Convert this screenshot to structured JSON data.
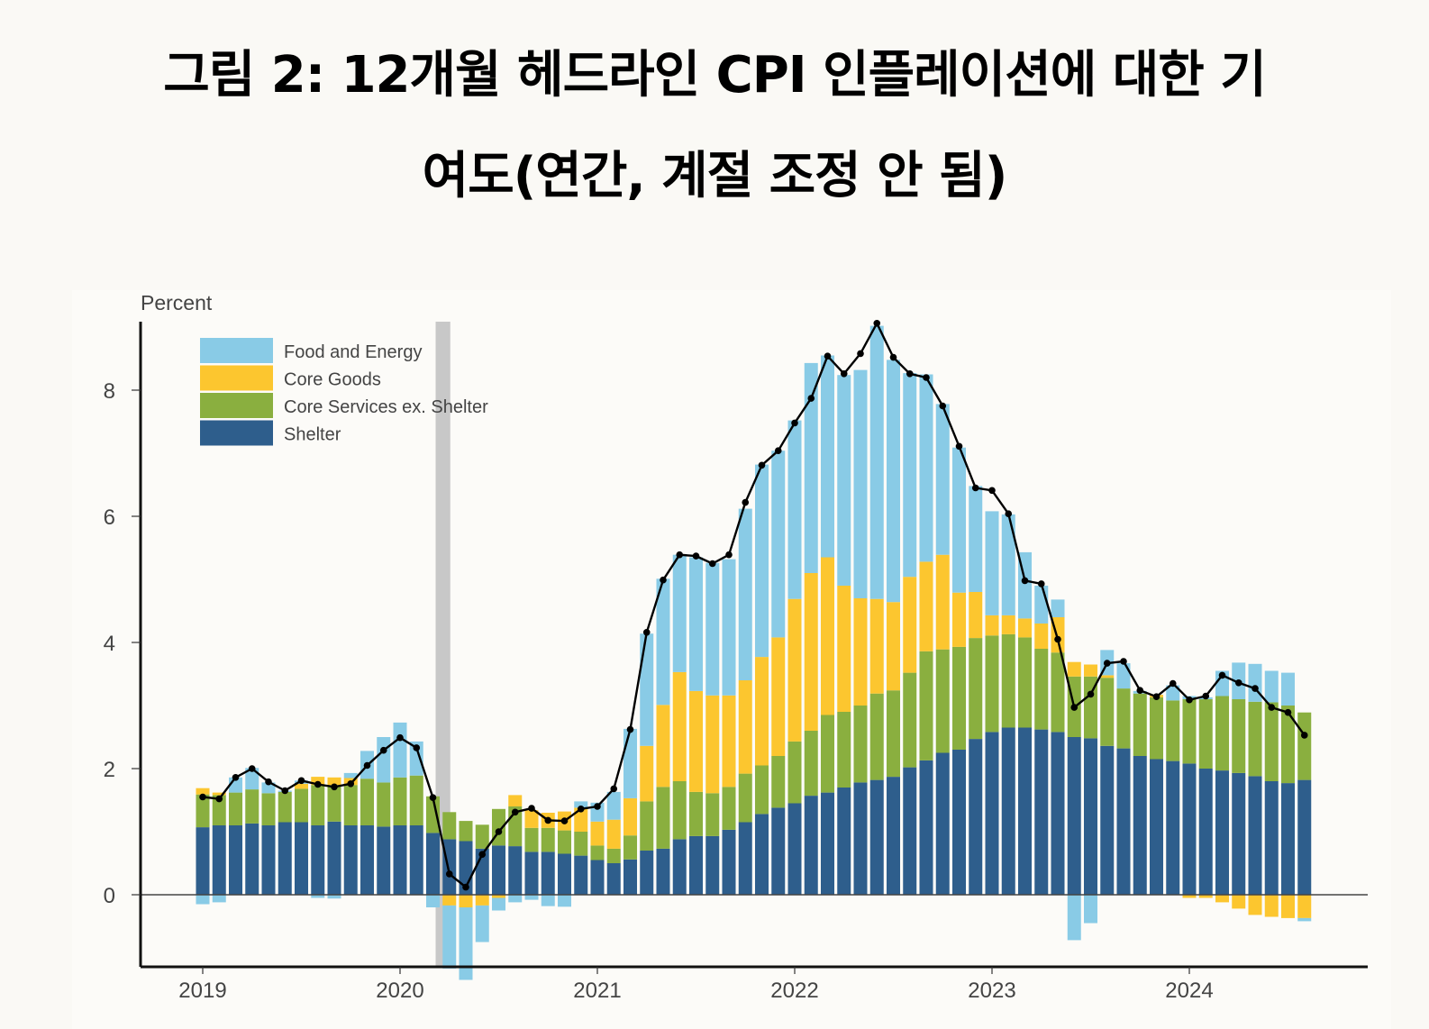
{
  "title": {
    "line1": "그림 2: 12개월 헤드라인 CPI 인플레이션에 대한 기",
    "line2": "여도(연간, 계절 조정 안 됨)"
  },
  "chart_data": {
    "type": "bar",
    "stacked": true,
    "title": "그림 2: 12개월 헤드라인 CPI 인플레이션에 대한 기여도(연간, 계절 조정 안 됨)",
    "ylabel": "Percent",
    "xlabel": "",
    "ylim": [
      -1.15,
      9.1
    ],
    "yticks": [
      0,
      2,
      4,
      6,
      8
    ],
    "xticks": [
      "2019",
      "2020",
      "2021",
      "2022",
      "2023",
      "2024"
    ],
    "grid": false,
    "legend_position": "top-left",
    "recession_shading": {
      "start": "2020-03",
      "end": "2020-04"
    },
    "x": [
      "2019-01",
      "2019-02",
      "2019-03",
      "2019-04",
      "2019-05",
      "2019-06",
      "2019-07",
      "2019-08",
      "2019-09",
      "2019-10",
      "2019-11",
      "2019-12",
      "2020-01",
      "2020-02",
      "2020-03",
      "2020-04",
      "2020-05",
      "2020-06",
      "2020-07",
      "2020-08",
      "2020-09",
      "2020-10",
      "2020-11",
      "2020-12",
      "2021-01",
      "2021-02",
      "2021-03",
      "2021-04",
      "2021-05",
      "2021-06",
      "2021-07",
      "2021-08",
      "2021-09",
      "2021-10",
      "2021-11",
      "2021-12",
      "2022-01",
      "2022-02",
      "2022-03",
      "2022-04",
      "2022-05",
      "2022-06",
      "2022-07",
      "2022-08",
      "2022-09",
      "2022-10",
      "2022-11",
      "2022-12",
      "2023-01",
      "2023-02",
      "2023-03",
      "2023-04",
      "2023-05",
      "2023-06",
      "2023-07",
      "2023-08",
      "2023-09",
      "2023-10",
      "2023-11",
      "2023-12",
      "2024-01",
      "2024-02",
      "2024-03",
      "2024-04",
      "2024-05",
      "2024-06",
      "2024-07",
      "2024-08"
    ],
    "series": [
      {
        "name": "Shelter",
        "color": "#2e5e8c",
        "values": [
          1.07,
          1.1,
          1.1,
          1.13,
          1.1,
          1.15,
          1.15,
          1.1,
          1.16,
          1.1,
          1.1,
          1.08,
          1.1,
          1.1,
          0.98,
          0.88,
          0.85,
          0.73,
          0.78,
          0.77,
          0.68,
          0.68,
          0.65,
          0.62,
          0.55,
          0.5,
          0.56,
          0.7,
          0.73,
          0.88,
          0.93,
          0.93,
          1.03,
          1.15,
          1.28,
          1.38,
          1.45,
          1.57,
          1.62,
          1.7,
          1.78,
          1.82,
          1.87,
          2.02,
          2.13,
          2.25,
          2.3,
          2.47,
          2.58,
          2.65,
          2.65,
          2.62,
          2.58,
          2.5,
          2.48,
          2.36,
          2.32,
          2.2,
          2.15,
          2.12,
          2.08,
          2.0,
          1.97,
          1.93,
          1.88,
          1.8,
          1.77,
          1.82
        ]
      },
      {
        "name": "Core Services ex. Shelter",
        "color": "#8aaf3f",
        "values": [
          0.52,
          0.48,
          0.52,
          0.54,
          0.51,
          0.48,
          0.53,
          0.64,
          0.58,
          0.64,
          0.74,
          0.7,
          0.76,
          0.79,
          0.58,
          0.43,
          0.32,
          0.38,
          0.58,
          0.63,
          0.38,
          0.38,
          0.37,
          0.38,
          0.23,
          0.23,
          0.38,
          0.78,
          0.98,
          0.92,
          0.7,
          0.68,
          0.68,
          0.77,
          0.77,
          0.82,
          0.98,
          1.03,
          1.23,
          1.2,
          1.22,
          1.37,
          1.37,
          1.5,
          1.73,
          1.64,
          1.63,
          1.6,
          1.53,
          1.48,
          1.43,
          1.28,
          1.26,
          0.96,
          0.98,
          1.08,
          0.95,
          0.99,
          0.98,
          0.96,
          1.02,
          1.1,
          1.18,
          1.17,
          1.18,
          1.25,
          1.23,
          1.07
        ]
      },
      {
        "name": "Core Goods",
        "color": "#fcc62f",
        "values": [
          0.1,
          0.04,
          0.0,
          0.0,
          0.0,
          0.0,
          0.08,
          0.13,
          0.12,
          0.11,
          0.0,
          0.0,
          0.0,
          0.0,
          0.0,
          -0.17,
          -0.2,
          -0.17,
          -0.05,
          0.18,
          0.28,
          0.24,
          0.3,
          0.38,
          0.38,
          0.46,
          0.59,
          0.88,
          1.3,
          1.73,
          1.6,
          1.55,
          1.45,
          1.48,
          1.72,
          1.88,
          2.26,
          2.5,
          2.5,
          2.0,
          1.7,
          1.5,
          1.4,
          1.52,
          1.42,
          1.5,
          0.86,
          0.73,
          0.32,
          0.3,
          0.3,
          0.4,
          0.56,
          0.23,
          0.19,
          0.04,
          0.0,
          0.0,
          0.04,
          0.0,
          -0.05,
          -0.05,
          -0.12,
          -0.22,
          -0.32,
          -0.35,
          -0.37,
          -0.37
        ]
      },
      {
        "name": "Food and Energy",
        "color": "#89cbe6",
        "values": [
          -0.15,
          -0.12,
          0.24,
          0.34,
          0.17,
          0.02,
          0.05,
          -0.05,
          -0.06,
          0.08,
          0.44,
          0.72,
          0.87,
          0.54,
          -0.2,
          -1.0,
          -1.15,
          -0.58,
          -0.2,
          -0.12,
          -0.08,
          -0.18,
          -0.19,
          0.1,
          0.3,
          0.44,
          1.1,
          1.78,
          2.0,
          1.86,
          2.12,
          2.1,
          2.16,
          2.72,
          3.05,
          2.96,
          2.83,
          3.33,
          3.2,
          3.34,
          3.62,
          4.33,
          3.84,
          3.23,
          2.97,
          2.39,
          2.3,
          1.68,
          1.65,
          1.6,
          1.05,
          0.6,
          0.28,
          -0.72,
          -0.45,
          0.4,
          0.4,
          0.04,
          0.0,
          0.24,
          0.05,
          0.03,
          0.4,
          0.58,
          0.6,
          0.5,
          0.52,
          -0.05
        ]
      }
    ],
    "headline": {
      "name": "Headline CPI",
      "color": "#000000",
      "values": [
        1.55,
        1.52,
        1.86,
        2.0,
        1.79,
        1.65,
        1.81,
        1.75,
        1.71,
        1.76,
        2.05,
        2.29,
        2.49,
        2.33,
        1.54,
        0.33,
        0.12,
        0.64,
        1.0,
        1.31,
        1.37,
        1.18,
        1.17,
        1.36,
        1.4,
        1.68,
        2.62,
        4.16,
        4.99,
        5.39,
        5.37,
        5.25,
        5.39,
        6.22,
        6.81,
        7.04,
        7.48,
        7.87,
        8.54,
        8.26,
        8.58,
        9.06,
        8.52,
        8.26,
        8.2,
        7.75,
        7.11,
        6.45,
        6.41,
        6.04,
        4.98,
        4.93,
        4.05,
        2.97,
        3.18,
        3.67,
        3.7,
        3.24,
        3.14,
        3.35,
        3.09,
        3.15,
        3.48,
        3.36,
        3.27,
        2.97,
        2.89,
        2.53
      ]
    }
  }
}
